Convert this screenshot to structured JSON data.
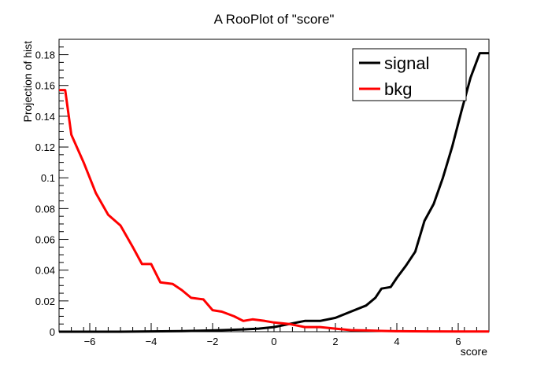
{
  "chart_data": {
    "type": "line",
    "title": "A RooPlot of \"score\"",
    "xlabel": "score",
    "ylabel": "Projection of hist",
    "xlim": [
      -7,
      7
    ],
    "ylim": [
      0,
      0.19
    ],
    "x_ticks": [
      -6,
      -4,
      -2,
      0,
      2,
      4,
      6
    ],
    "x_tick_labels": [
      "−6",
      "−4",
      "−2",
      "0",
      "2",
      "4",
      "6"
    ],
    "y_ticks": [
      0,
      0.02,
      0.04,
      0.06,
      0.08,
      0.1,
      0.12,
      0.14,
      0.16,
      0.18
    ],
    "y_tick_labels": [
      "0",
      "0.02",
      "0.04",
      "0.06",
      "0.08",
      "0.1",
      "0.12",
      "0.14",
      "0.16",
      "0.18"
    ],
    "grid": false,
    "legend_position": "top-right",
    "series": [
      {
        "name": "signal",
        "color": "#000000",
        "x": [
          -7,
          -6,
          -5,
          -4,
          -3,
          -2,
          -1,
          -0.5,
          0,
          0.5,
          1,
          1.5,
          2,
          2.5,
          3,
          3.3,
          3.5,
          3.8,
          4,
          4.3,
          4.6,
          4.9,
          5.2,
          5.5,
          5.8,
          6.1,
          6.4,
          6.7,
          7
        ],
        "y": [
          0,
          0,
          0,
          0.0002,
          0.0004,
          0.0008,
          0.0015,
          0.002,
          0.003,
          0.005,
          0.007,
          0.007,
          0.009,
          0.013,
          0.017,
          0.022,
          0.028,
          0.029,
          0.035,
          0.043,
          0.052,
          0.072,
          0.083,
          0.1,
          0.12,
          0.143,
          0.165,
          0.181,
          0.181
        ]
      },
      {
        "name": "bkg",
        "color": "#ff0000",
        "x": [
          -7,
          -6.8,
          -6.6,
          -6.2,
          -5.8,
          -5.4,
          -5.0,
          -4.6,
          -4.3,
          -4.0,
          -3.7,
          -3.3,
          -3.0,
          -2.7,
          -2.3,
          -2.0,
          -1.7,
          -1.3,
          -1.0,
          -0.7,
          -0.3,
          0,
          0.5,
          1.0,
          1.5,
          2.0,
          2.5,
          3.0,
          3.5,
          4.0,
          5.0,
          6.0,
          7.0
        ],
        "y": [
          0.157,
          0.157,
          0.128,
          0.11,
          0.09,
          0.076,
          0.069,
          0.055,
          0.044,
          0.044,
          0.032,
          0.031,
          0.027,
          0.022,
          0.021,
          0.014,
          0.013,
          0.01,
          0.007,
          0.008,
          0.007,
          0.006,
          0.005,
          0.003,
          0.003,
          0.002,
          0.001,
          0.0008,
          0.0005,
          0.0003,
          0.0002,
          0.0001,
          0.0001
        ]
      }
    ]
  }
}
